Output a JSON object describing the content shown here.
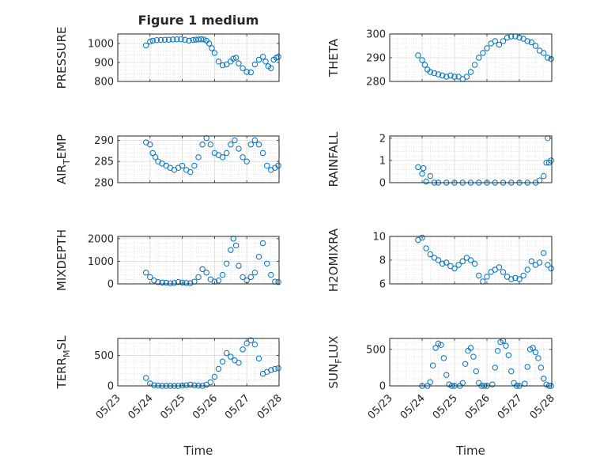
{
  "figure_title": "Figure 1 medium",
  "chart_data": [
    {
      "type": "scatter",
      "ylabel": "PRESSURE",
      "xlabel": "",
      "xlim": [
        "05/23",
        "05/28"
      ],
      "ylim": [
        800,
        1050
      ],
      "yticks": [
        800,
        900,
        1000
      ],
      "grid": true,
      "xticklabels_visible": false,
      "series": [
        {
          "marker": "o",
          "x": [
            "05/23 21:00",
            "05/24 00:00",
            "05/24 02:00",
            "05/24 05:00",
            "05/24 08:00",
            "05/24 11:00",
            "05/24 14:00",
            "05/24 17:00",
            "05/24 20:00",
            "05/24 23:00",
            "05/25 02:00",
            "05/25 05:00",
            "05/25 08:00",
            "05/25 10:00",
            "05/25 12:00",
            "05/25 14:00",
            "05/25 16:00",
            "05/25 18:00",
            "05/25 20:00",
            "05/25 22:00",
            "05/26 00:00",
            "05/26 03:00",
            "05/26 06:00",
            "05/26 09:00",
            "05/26 12:00",
            "05/26 14:00",
            "05/26 16:00",
            "05/26 18:00",
            "05/26 21:00",
            "05/27 00:00",
            "05/27 03:00",
            "05/27 06:00",
            "05/27 09:00",
            "05/27 12:00",
            "05/27 14:00",
            "05/27 16:00",
            "05/27 18:00",
            "05/27 20:00",
            "05/27 22:00",
            "05/27 23:30"
          ],
          "y": [
            990,
            1010,
            1015,
            1018,
            1019,
            1020,
            1020,
            1021,
            1022,
            1022,
            1020,
            1015,
            1019,
            1020,
            1021,
            1022,
            1021,
            1015,
            1000,
            975,
            950,
            905,
            885,
            890,
            905,
            920,
            925,
            895,
            870,
            850,
            848,
            890,
            915,
            930,
            905,
            880,
            870,
            915,
            925,
            930
          ]
        }
      ]
    },
    {
      "type": "scatter",
      "ylabel": "THETA",
      "xlabel": "",
      "xlim": [
        "05/23",
        "05/28"
      ],
      "ylim": [
        280,
        300
      ],
      "yticks": [
        280,
        290,
        300
      ],
      "grid": true,
      "xticklabels_visible": false,
      "series": [
        {
          "marker": "o",
          "x": [
            "05/23 21:00",
            "05/24 00:00",
            "05/24 02:00",
            "05/24 04:00",
            "05/24 06:00",
            "05/24 09:00",
            "05/24 12:00",
            "05/24 15:00",
            "05/24 18:00",
            "05/24 21:00",
            "05/25 00:00",
            "05/25 03:00",
            "05/25 06:00",
            "05/25 09:00",
            "05/25 12:00",
            "05/25 15:00",
            "05/25 18:00",
            "05/25 21:00",
            "05/26 00:00",
            "05/26 03:00",
            "05/26 06:00",
            "05/26 09:00",
            "05/26 12:00",
            "05/26 15:00",
            "05/26 18:00",
            "05/26 21:00",
            "05/27 00:00",
            "05/27 03:00",
            "05/27 06:00",
            "05/27 09:00",
            "05/27 12:00",
            "05/27 15:00",
            "05/27 18:00",
            "05/27 21:00",
            "05/27 23:30"
          ],
          "y": [
            291,
            289,
            287,
            285,
            284,
            283.5,
            283,
            282.5,
            282,
            282.5,
            282,
            282,
            281,
            282,
            284,
            287,
            290,
            292,
            294,
            296,
            297,
            295.5,
            297,
            298.5,
            299,
            299,
            298.5,
            298,
            297,
            296.5,
            295,
            293,
            292,
            290,
            289.5
          ]
        }
      ]
    },
    {
      "type": "scatter",
      "ylabel": "AIR_TEMP",
      "xlabel": "",
      "xlim": [
        "05/23",
        "05/28"
      ],
      "ylim": [
        280,
        291
      ],
      "yticks": [
        280,
        285,
        290
      ],
      "grid": true,
      "xticklabels_visible": false,
      "series": [
        {
          "marker": "o",
          "x": [
            "05/23 21:00",
            "05/24 00:00",
            "05/24 02:00",
            "05/24 04:00",
            "05/24 06:00",
            "05/24 09:00",
            "05/24 12:00",
            "05/24 15:00",
            "05/24 18:00",
            "05/24 21:00",
            "05/25 00:00",
            "05/25 03:00",
            "05/25 06:00",
            "05/25 09:00",
            "05/25 12:00",
            "05/25 15:00",
            "05/25 18:00",
            "05/25 21:00",
            "05/26 00:00",
            "05/26 03:00",
            "05/26 06:00",
            "05/26 09:00",
            "05/26 12:00",
            "05/26 15:00",
            "05/26 18:00",
            "05/26 21:00",
            "05/27 00:00",
            "05/27 03:00",
            "05/27 06:00",
            "05/27 09:00",
            "05/27 12:00",
            "05/27 15:00",
            "05/27 18:00",
            "05/27 21:00",
            "05/27 23:30"
          ],
          "y": [
            289.5,
            289,
            287,
            286,
            285,
            284.5,
            284,
            283.5,
            283,
            283.5,
            284,
            283,
            282.5,
            284,
            286,
            289,
            290.5,
            289,
            287,
            286.5,
            286,
            287,
            289,
            290,
            288,
            286,
            285,
            289,
            290,
            289,
            287,
            284,
            283,
            283.5,
            284
          ]
        }
      ]
    },
    {
      "type": "scatter",
      "ylabel": "RAINFALL",
      "xlabel": "",
      "xlim": [
        "05/23",
        "05/28"
      ],
      "ylim": [
        0,
        2.1
      ],
      "yticks": [
        0,
        1,
        2
      ],
      "grid": true,
      "xticklabels_visible": false,
      "series": [
        {
          "marker": "o",
          "x": [
            "05/23 21:00",
            "05/24 00:00",
            "05/24 01:00",
            "05/24 03:00",
            "05/24 06:00",
            "05/24 09:00",
            "05/24 12:00",
            "05/24 18:00",
            "05/25 00:00",
            "05/25 06:00",
            "05/25 12:00",
            "05/25 18:00",
            "05/26 00:00",
            "05/26 06:00",
            "05/26 12:00",
            "05/26 18:00",
            "05/27 00:00",
            "05/27 06:00",
            "05/27 12:00",
            "05/27 15:00",
            "05/27 18:00",
            "05/27 20:00",
            "05/27 21:00",
            "05/27 22:00",
            "05/27 23:30"
          ],
          "y": [
            0.7,
            0.4,
            0.65,
            0.05,
            0.3,
            0,
            0,
            0,
            0,
            0,
            0,
            0,
            0,
            0,
            0,
            0,
            0,
            0,
            0,
            0.1,
            0.3,
            0.9,
            2.0,
            0.9,
            1.0
          ]
        }
      ]
    },
    {
      "type": "scatter",
      "ylabel": "MIXDEPTH",
      "xlabel": "",
      "xlim": [
        "05/23",
        "05/28"
      ],
      "ylim": [
        0,
        2100
      ],
      "yticks": [
        0,
        1000,
        2000
      ],
      "grid": true,
      "xticklabels_visible": false,
      "series": [
        {
          "marker": "o",
          "x": [
            "05/23 21:00",
            "05/24 00:00",
            "05/24 03:00",
            "05/24 06:00",
            "05/24 09:00",
            "05/24 12:00",
            "05/24 15:00",
            "05/24 18:00",
            "05/24 21:00",
            "05/25 00:00",
            "05/25 03:00",
            "05/25 06:00",
            "05/25 09:00",
            "05/25 12:00",
            "05/25 15:00",
            "05/25 18:00",
            "05/25 21:00",
            "05/26 00:00",
            "05/26 03:00",
            "05/26 06:00",
            "05/26 09:00",
            "05/26 12:00",
            "05/26 14:00",
            "05/26 16:00",
            "05/26 18:00",
            "05/26 21:00",
            "05/27 00:00",
            "05/27 03:00",
            "05/27 06:00",
            "05/27 09:00",
            "05/27 12:00",
            "05/27 15:00",
            "05/27 18:00",
            "05/27 21:00",
            "05/27 23:30"
          ],
          "y": [
            500,
            300,
            150,
            80,
            60,
            50,
            30,
            40,
            80,
            60,
            40,
            30,
            100,
            300,
            650,
            500,
            200,
            100,
            150,
            400,
            900,
            1500,
            2000,
            1700,
            800,
            300,
            150,
            300,
            500,
            1200,
            1800,
            900,
            400,
            100,
            80
          ]
        }
      ]
    },
    {
      "type": "scatter",
      "ylabel": "H2OMIXRA",
      "xlabel": "",
      "xlim": [
        "05/23",
        "05/28"
      ],
      "ylim": [
        6,
        10
      ],
      "yticks": [
        6,
        8,
        10
      ],
      "grid": true,
      "xticklabels_visible": false,
      "series": [
        {
          "marker": "o",
          "x": [
            "05/23 21:00",
            "05/24 00:00",
            "05/24 03:00",
            "05/24 06:00",
            "05/24 09:00",
            "05/24 12:00",
            "05/24 15:00",
            "05/24 18:00",
            "05/24 21:00",
            "05/25 00:00",
            "05/25 03:00",
            "05/25 06:00",
            "05/25 09:00",
            "05/25 12:00",
            "05/25 15:00",
            "05/25 18:00",
            "05/25 21:00",
            "05/26 00:00",
            "05/26 03:00",
            "05/26 06:00",
            "05/26 09:00",
            "05/26 12:00",
            "05/26 15:00",
            "05/26 18:00",
            "05/26 21:00",
            "05/27 00:00",
            "05/27 03:00",
            "05/27 06:00",
            "05/27 09:00",
            "05/27 12:00",
            "05/27 15:00",
            "05/27 18:00",
            "05/27 21:00",
            "05/27 23:30"
          ],
          "y": [
            9.7,
            9.9,
            9.0,
            8.5,
            8.2,
            8.0,
            7.7,
            7.8,
            7.5,
            7.3,
            7.6,
            7.9,
            8.2,
            8.0,
            7.7,
            6.7,
            6.2,
            6.6,
            7.0,
            7.2,
            7.4,
            7.0,
            6.6,
            6.4,
            6.5,
            6.4,
            6.7,
            7.2,
            7.9,
            7.6,
            7.8,
            8.6,
            7.6,
            7.3
          ]
        }
      ]
    },
    {
      "type": "scatter",
      "ylabel": "TERR_MSL",
      "xlabel": "Time",
      "xlim": [
        "05/23",
        "05/28"
      ],
      "ylim": [
        0,
        780
      ],
      "yticks": [
        0,
        500
      ],
      "grid": true,
      "xticklabels_visible": true,
      "series": [
        {
          "marker": "o",
          "x": [
            "05/23 21:00",
            "05/24 00:00",
            "05/24 03:00",
            "05/24 06:00",
            "05/24 09:00",
            "05/24 12:00",
            "05/24 15:00",
            "05/24 18:00",
            "05/24 21:00",
            "05/25 00:00",
            "05/25 03:00",
            "05/25 06:00",
            "05/25 09:00",
            "05/25 12:00",
            "05/25 15:00",
            "05/25 18:00",
            "05/25 21:00",
            "05/26 00:00",
            "05/26 03:00",
            "05/26 06:00",
            "05/26 09:00",
            "05/26 12:00",
            "05/26 15:00",
            "05/26 18:00",
            "05/26 21:00",
            "05/27 00:00",
            "05/27 03:00",
            "05/27 06:00",
            "05/27 09:00",
            "05/27 12:00",
            "05/27 15:00",
            "05/27 18:00",
            "05/27 21:00",
            "05/27 23:30"
          ],
          "y": [
            130,
            40,
            10,
            5,
            0,
            0,
            0,
            0,
            0,
            5,
            10,
            20,
            10,
            5,
            0,
            20,
            60,
            150,
            280,
            400,
            540,
            480,
            420,
            380,
            600,
            700,
            750,
            680,
            450,
            200,
            230,
            260,
            280,
            290
          ]
        }
      ]
    },
    {
      "type": "scatter",
      "ylabel": "SUN_FLUX",
      "xlabel": "Time",
      "xlim": [
        "05/23",
        "05/28"
      ],
      "ylim": [
        0,
        650
      ],
      "yticks": [
        0,
        500
      ],
      "grid": true,
      "xticklabels_visible": true,
      "series": [
        {
          "marker": "o",
          "x": [
            "05/24 00:00",
            "05/24 04:00",
            "05/24 06:00",
            "05/24 08:00",
            "05/24 10:00",
            "05/24 12:00",
            "05/24 14:00",
            "05/24 16:00",
            "05/24 18:00",
            "05/24 20:00",
            "05/24 22:00",
            "05/25 00:00",
            "05/25 04:00",
            "05/25 06:00",
            "05/25 08:00",
            "05/25 10:00",
            "05/25 12:00",
            "05/25 14:00",
            "05/25 16:00",
            "05/25 18:00",
            "05/25 20:00",
            "05/25 22:00",
            "05/26 00:00",
            "05/26 04:00",
            "05/26 06:00",
            "05/26 08:00",
            "05/26 10:00",
            "05/26 12:00",
            "05/26 14:00",
            "05/26 16:00",
            "05/26 18:00",
            "05/26 20:00",
            "05/26 22:00",
            "05/27 00:00",
            "05/27 04:00",
            "05/27 06:00",
            "05/27 08:00",
            "05/27 10:00",
            "05/27 12:00",
            "05/27 14:00",
            "05/27 16:00",
            "05/27 18:00",
            "05/27 20:00",
            "05/27 22:00",
            "05/27 23:30"
          ],
          "y": [
            0,
            0,
            50,
            280,
            520,
            580,
            560,
            380,
            150,
            20,
            0,
            0,
            0,
            40,
            300,
            480,
            520,
            400,
            200,
            40,
            0,
            0,
            0,
            20,
            250,
            480,
            600,
            620,
            550,
            420,
            200,
            40,
            0,
            0,
            30,
            260,
            500,
            520,
            460,
            380,
            250,
            100,
            20,
            0,
            0
          ]
        }
      ]
    }
  ]
}
